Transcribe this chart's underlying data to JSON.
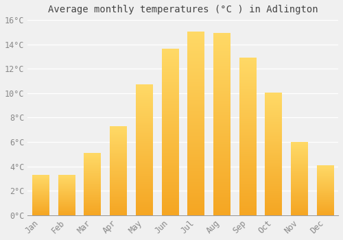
{
  "title": "Average monthly temperatures (°C ) in Adlington",
  "months": [
    "Jan",
    "Feb",
    "Mar",
    "Apr",
    "May",
    "Jun",
    "Jul",
    "Aug",
    "Sep",
    "Oct",
    "Nov",
    "Dec"
  ],
  "values": [
    3.3,
    3.3,
    5.1,
    7.3,
    10.7,
    13.6,
    15.0,
    14.9,
    12.9,
    10.0,
    6.0,
    4.1
  ],
  "bar_color_bottom": "#F5A623",
  "bar_color_top": "#FFD966",
  "ylim": [
    0,
    16
  ],
  "yticks": [
    0,
    2,
    4,
    6,
    8,
    10,
    12,
    14,
    16
  ],
  "ytick_labels": [
    "0°C",
    "2°C",
    "4°C",
    "6°C",
    "8°C",
    "10°C",
    "12°C",
    "14°C",
    "16°C"
  ],
  "background_color": "#f0f0f0",
  "grid_color": "#ffffff",
  "title_fontsize": 10,
  "tick_fontsize": 8.5,
  "bar_width": 0.65
}
